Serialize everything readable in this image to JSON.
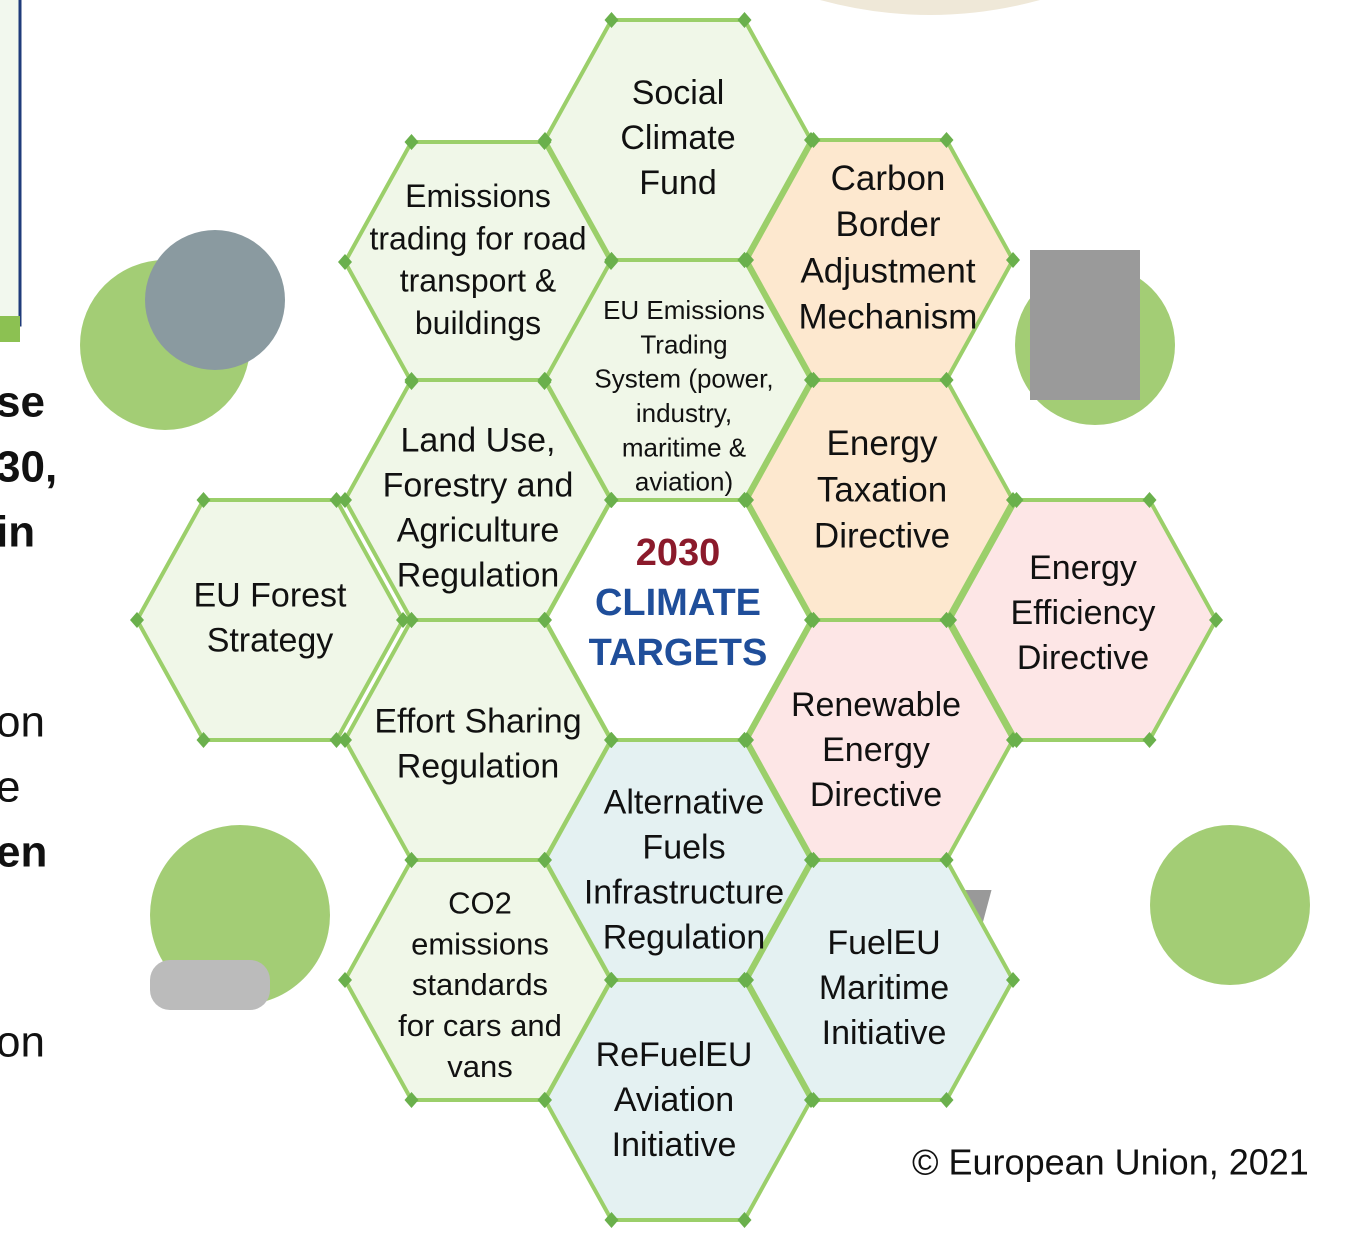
{
  "nodes": [
    {
      "lines": [
        "Social",
        "Climate",
        "Fund"
      ]
    },
    {
      "lines": [
        "Emissions",
        "trading for road",
        "transport &",
        "buildings"
      ]
    },
    {
      "lines": [
        "Carbon",
        "Border",
        "Adjustment",
        "Mechanism"
      ]
    },
    {
      "lines": [
        "EU Emissions",
        "Trading",
        "System (power,",
        "industry,",
        "maritime &",
        "aviation)"
      ]
    },
    {
      "lines": [
        "Land Use,",
        "Forestry and",
        "Agriculture",
        "Regulation"
      ]
    },
    {
      "lines": [
        "Energy",
        "Taxation",
        "Directive"
      ]
    },
    {
      "lines": [
        "EU Forest",
        "Strategy"
      ]
    },
    {
      "lines": [
        "2030",
        "CLIMATE",
        "TARGETS"
      ]
    },
    {
      "lines": [
        "Energy",
        "Efficiency",
        "Directive"
      ]
    },
    {
      "lines": [
        "Effort Sharing",
        "Regulation"
      ]
    },
    {
      "lines": [
        "Renewable",
        "Energy",
        "Directive"
      ]
    },
    {
      "lines": [
        "Alternative",
        "Fuels",
        "Infrastructure",
        "Regulation"
      ]
    },
    {
      "lines": [
        "CO2",
        "emissions",
        "standards",
        "for cars and",
        "vans"
      ]
    },
    {
      "lines": [
        "FuelEU",
        "Maritime",
        "Initiative"
      ]
    },
    {
      "lines": [
        "ReFuelEU",
        "Aviation",
        "Initiative"
      ]
    }
  ],
  "left_text": [
    "se",
    "30,",
    "in",
    "on",
    "e",
    "en",
    "on"
  ],
  "copyright": "© European Union, 2021"
}
